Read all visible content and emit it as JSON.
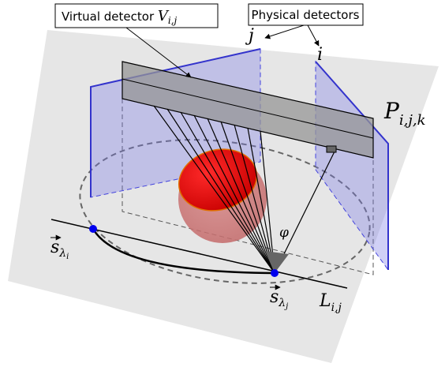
{
  "labels": {
    "virtual_detector": {
      "text": "Virtual detector",
      "symbol": "V",
      "sub": "i,j"
    },
    "physical_detectors": "Physical detectors",
    "detector_j": "j",
    "detector_i": "i",
    "plane": {
      "symbol": "P",
      "sub": "i,j,k"
    },
    "angle": "φ",
    "source_i": {
      "symbol": "s",
      "sub": "λ",
      "subsub": "i"
    },
    "source_j": {
      "symbol": "s",
      "sub": "λ",
      "subsub": "j"
    },
    "line": {
      "symbol": "L",
      "sub": "i,j"
    }
  }
}
